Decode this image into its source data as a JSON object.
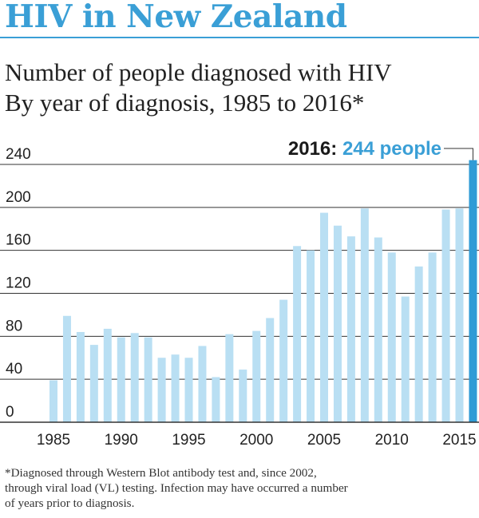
{
  "header": {
    "title": "HIV in New Zealand",
    "subtitle_line1": "Number of people diagnosed with HIV",
    "subtitle_line2": "By year of diagnosis, 1985 to 2016*"
  },
  "colors": {
    "title": "#3a9fd6",
    "bar": "#b9dff3",
    "highlight_bar": "#2f9bd6",
    "highlight_label": "#3a9fd6",
    "gridline": "#333333"
  },
  "chart_data": {
    "type": "bar",
    "x": [
      1985,
      1986,
      1987,
      1988,
      1989,
      1990,
      1991,
      1992,
      1993,
      1994,
      1995,
      1996,
      1997,
      1998,
      1999,
      2000,
      2001,
      2002,
      2003,
      2004,
      2005,
      2006,
      2007,
      2008,
      2009,
      2010,
      2011,
      2012,
      2013,
      2014,
      2015,
      2016
    ],
    "values": [
      39,
      99,
      84,
      72,
      87,
      79,
      83,
      79,
      60,
      63,
      60,
      71,
      42,
      82,
      49,
      85,
      97,
      114,
      164,
      160,
      195,
      183,
      173,
      199,
      172,
      158,
      117,
      145,
      158,
      198,
      199,
      244
    ],
    "ylim": [
      0,
      240
    ],
    "yticks": [
      0,
      40,
      80,
      120,
      160,
      200,
      240
    ],
    "xticks": [
      1985,
      1990,
      1995,
      2000,
      2005,
      2010,
      2015
    ],
    "grid": true,
    "highlight": {
      "year": 2016,
      "prefix": "2016: ",
      "value_text": "244 people"
    }
  },
  "footnote": {
    "line1": "*Diagnosed through Western Blot antibody test and, since 2002,",
    "line2": "through viral load (VL) testing. Infection may have occurred a number",
    "line3": "of years prior to diagnosis."
  }
}
